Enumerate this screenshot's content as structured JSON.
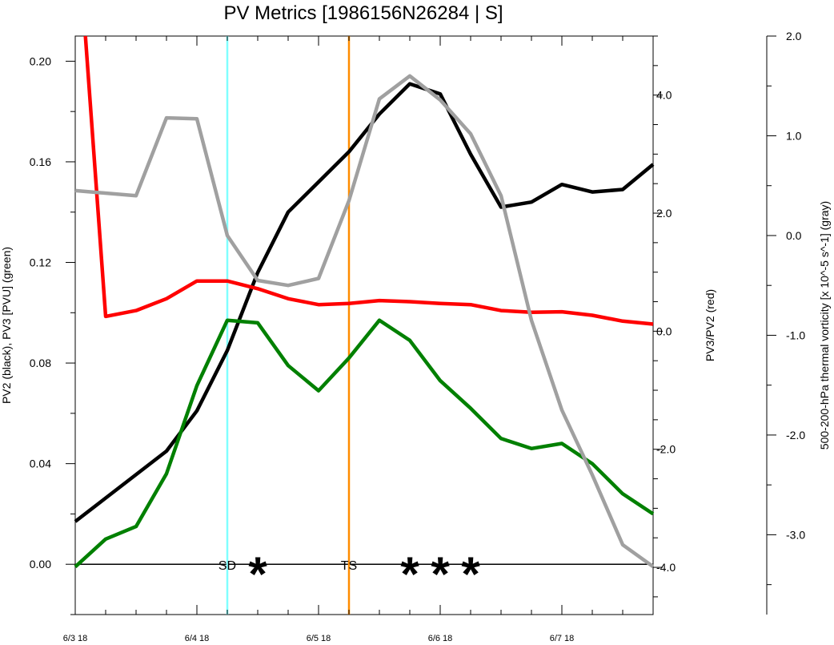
{
  "chart_data": {
    "type": "line",
    "title": "PV Metrics [1986156N26284 | S]",
    "x_ticks": [
      "6/3 18",
      "6/4 18",
      "6/5 18",
      "6/6 18",
      "6/7 18"
    ],
    "x_range_hours": [
      0,
      114
    ],
    "axes": {
      "left": {
        "label": "PV2 (black), PV3 [PVU] (green)",
        "range": [
          -0.02,
          0.21
        ],
        "ticks": [
          "0.00",
          "0.04",
          "0.08",
          "0.12",
          "0.16",
          "0.20"
        ],
        "tick_values": [
          0.0,
          0.04,
          0.08,
          0.12,
          0.16,
          0.2
        ]
      },
      "right": {
        "label": "PV3/PV2 (red)",
        "range": [
          -4.8,
          5.0
        ],
        "ticks": [
          "-4.0",
          "-2.0",
          "0.0",
          "2.0",
          "4.0"
        ],
        "tick_values": [
          -4.0,
          -2.0,
          0.0,
          2.0,
          4.0
        ]
      },
      "far_right": {
        "label": "500-200-hPa thermal vorticity [x 10^-5 s^-1] (gray)",
        "range": [
          -3.8,
          2.0
        ],
        "ticks": [
          "-3.0",
          "-2.0",
          "-1.0",
          "0.0",
          "1.0",
          "2.0"
        ],
        "tick_values": [
          -3.0,
          -2.0,
          -1.0,
          0.0,
          1.0,
          2.0
        ]
      }
    },
    "series": [
      {
        "name": "PV2",
        "axis": "left",
        "color": "#000000",
        "x": [
          0,
          18,
          24,
          30,
          36,
          42,
          48,
          54,
          60,
          66,
          72,
          78,
          84,
          90,
          96,
          102,
          108,
          114
        ],
        "y": [
          0.017,
          0.045,
          0.061,
          0.085,
          0.116,
          0.14,
          0.152,
          0.164,
          0.179,
          0.191,
          0.187,
          0.163,
          0.142,
          0.144,
          0.151,
          0.148,
          0.149,
          0.159
        ]
      },
      {
        "name": "PV3",
        "axis": "left",
        "color": "#008000",
        "x": [
          0,
          6,
          12,
          18,
          24,
          30,
          36,
          42,
          48,
          54,
          60,
          66,
          72,
          78,
          84,
          90,
          96,
          102,
          108,
          114
        ],
        "y": [
          -0.001,
          0.01,
          0.015,
          0.036,
          0.071,
          0.097,
          0.096,
          0.079,
          0.069,
          0.082,
          0.097,
          0.089,
          0.073,
          0.062,
          0.05,
          0.046,
          0.048,
          0.04,
          0.028,
          0.02
        ]
      },
      {
        "name": "PV3/PV2",
        "axis": "right",
        "color": "#ff0000",
        "x": [
          2,
          6,
          12,
          18,
          24,
          30,
          36,
          42,
          48,
          54,
          60,
          66,
          72,
          78,
          84,
          90,
          96,
          102,
          108,
          114
        ],
        "y": [
          5.0,
          0.25,
          0.35,
          0.55,
          0.85,
          0.85,
          0.72,
          0.55,
          0.45,
          0.47,
          0.52,
          0.5,
          0.47,
          0.45,
          0.35,
          0.32,
          0.33,
          0.27,
          0.17,
          0.12
        ]
      },
      {
        "name": "thermal vorticity",
        "axis": "far_right",
        "color": "#a0a0a0",
        "x": [
          0,
          12,
          18,
          24,
          30,
          36,
          42,
          48,
          54,
          60,
          66,
          72,
          78,
          84,
          90,
          96,
          102,
          108,
          114
        ],
        "y": [
          0.45,
          0.4,
          1.18,
          1.17,
          0.0,
          -0.45,
          -0.5,
          -0.43,
          0.35,
          1.37,
          1.6,
          1.36,
          1.02,
          0.4,
          -0.85,
          -1.75,
          -2.4,
          -3.1,
          -3.32
        ]
      }
    ],
    "reference_line": {
      "axis": "left",
      "value": 0.0,
      "color": "#000000"
    },
    "vertical_lines": [
      {
        "name": "SD",
        "x": 30,
        "color": "#80ffff"
      },
      {
        "name": "TS",
        "x": 54,
        "color": "#ff8c00"
      }
    ],
    "annotations": [
      {
        "text": "SD",
        "x": 30
      },
      {
        "text": "TS",
        "x": 54
      }
    ],
    "markers": [
      {
        "symbol": "*",
        "x": 36
      },
      {
        "symbol": "*",
        "x": 66
      },
      {
        "symbol": "*",
        "x": 72
      },
      {
        "symbol": "*",
        "x": 78
      }
    ],
    "grid": false,
    "legend": "none"
  }
}
